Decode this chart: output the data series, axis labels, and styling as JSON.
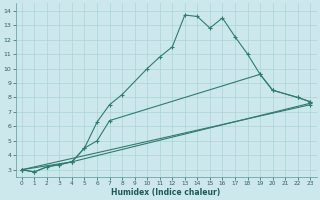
{
  "title": "",
  "xlabel": "Humidex (Indice chaleur)",
  "xlim": [
    -0.5,
    23.5
  ],
  "ylim": [
    2.5,
    14.5
  ],
  "xticks": [
    0,
    1,
    2,
    3,
    4,
    5,
    6,
    7,
    8,
    9,
    10,
    11,
    12,
    13,
    14,
    15,
    16,
    17,
    18,
    19,
    20,
    21,
    22,
    23
  ],
  "yticks": [
    3,
    4,
    5,
    6,
    7,
    8,
    9,
    10,
    11,
    12,
    13,
    14
  ],
  "bg_color": "#cce8ec",
  "grid_color": "#b0d8dc",
  "line_color": "#2e7d6e",
  "series": [
    {
      "x": [
        0,
        1,
        2,
        3,
        4,
        5,
        6,
        7,
        8,
        10,
        11,
        12,
        13,
        14,
        15,
        16,
        17,
        18,
        19,
        20,
        22,
        23
      ],
      "y": [
        3.0,
        2.85,
        3.2,
        3.35,
        3.55,
        4.5,
        6.3,
        7.5,
        8.2,
        10.0,
        10.8,
        11.5,
        13.7,
        13.6,
        12.8,
        13.5,
        12.2,
        11.0,
        9.6,
        8.5,
        8.0,
        7.7
      ]
    },
    {
      "x": [
        0,
        1,
        2,
        3,
        4,
        5,
        6,
        7,
        19,
        20,
        22,
        23
      ],
      "y": [
        3.0,
        2.85,
        3.2,
        3.35,
        3.55,
        4.5,
        5.0,
        6.4,
        9.6,
        8.5,
        8.0,
        7.7
      ]
    },
    {
      "x": [
        0,
        4,
        23
      ],
      "y": [
        3.0,
        3.55,
        7.6
      ]
    },
    {
      "x": [
        0,
        23
      ],
      "y": [
        3.0,
        7.5
      ]
    }
  ]
}
